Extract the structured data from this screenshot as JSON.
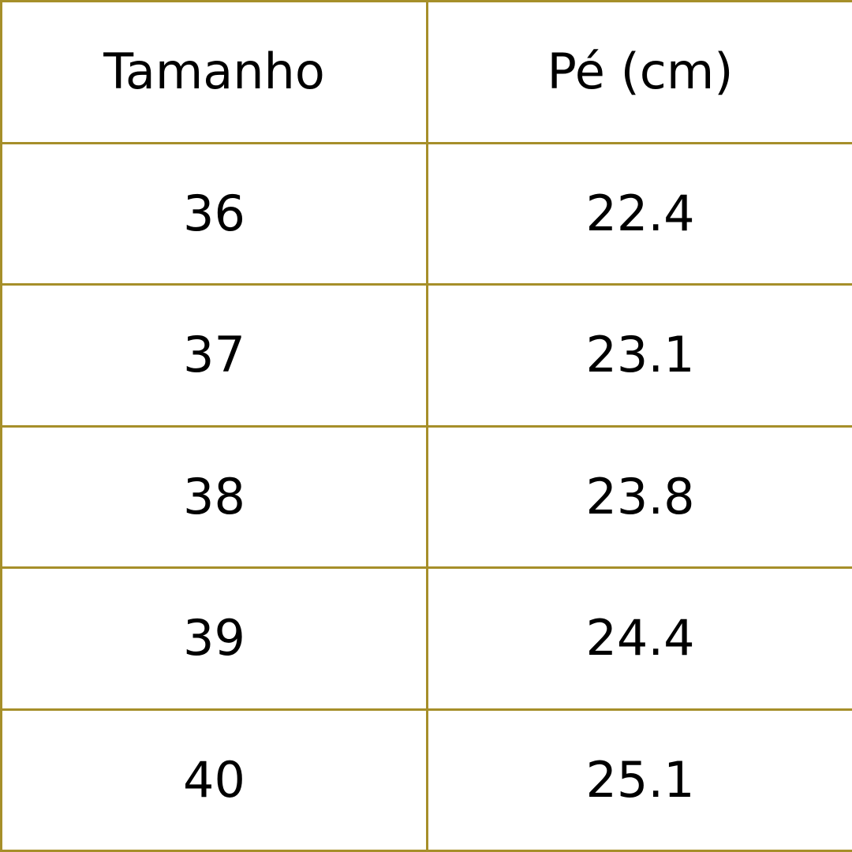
{
  "table": {
    "headers": [
      "Tamanho",
      "Pé (cm)"
    ],
    "rows": [
      [
        "36",
        "22.4"
      ],
      [
        "37",
        "23.1"
      ],
      [
        "38",
        "23.8"
      ],
      [
        "39",
        "24.4"
      ],
      [
        "40",
        "25.1"
      ]
    ]
  },
  "colors": {
    "border": "#a68f2a",
    "text": "#000000",
    "background": "#ffffff"
  }
}
